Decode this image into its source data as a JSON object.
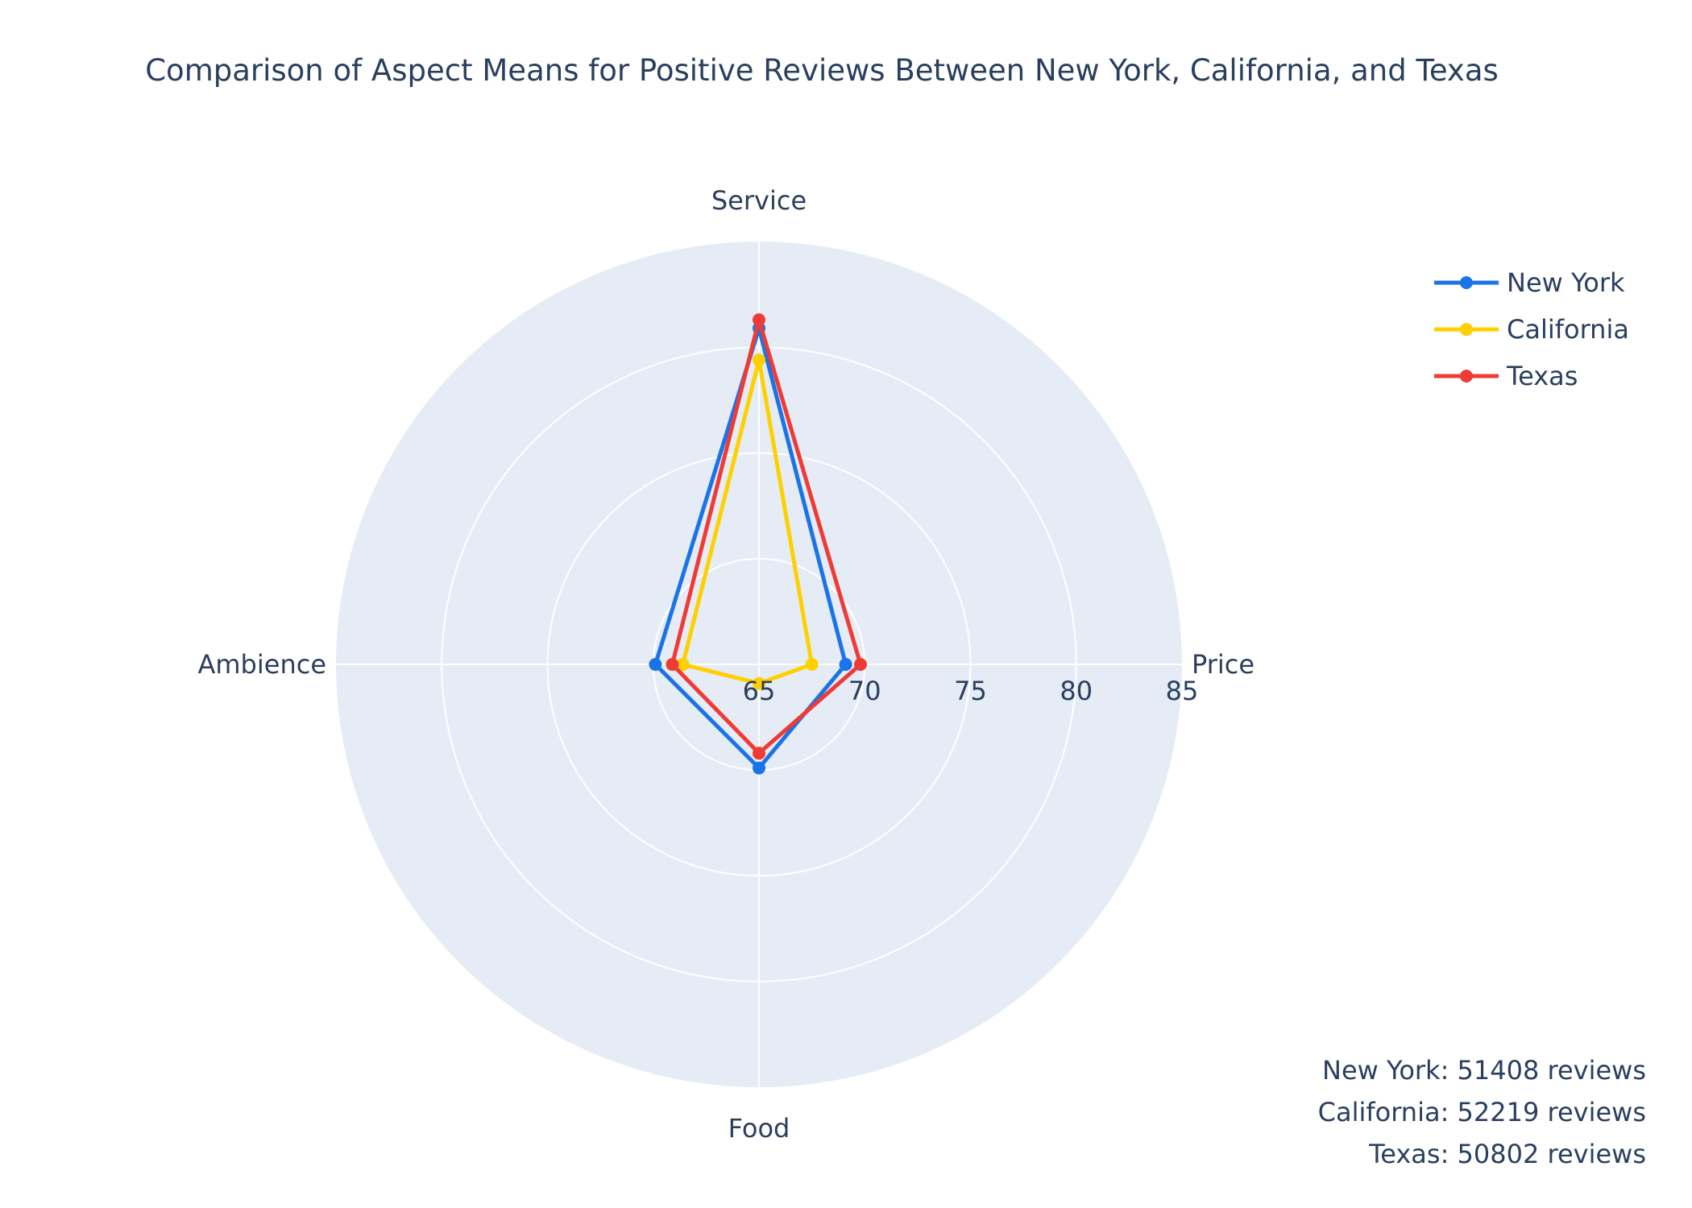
{
  "chart_data": {
    "type": "radar",
    "title": "Comparison of Aspect Means for Positive Reviews Between New York, California, and Texas",
    "categories": [
      "Service",
      "Price",
      "Food",
      "Ambience"
    ],
    "radial_range": [
      65,
      85
    ],
    "radial_ticks": [
      "65",
      "70",
      "75",
      "80",
      "85"
    ],
    "grid": true,
    "legend_position": "top-right",
    "series": [
      {
        "name": "New York",
        "color": "#1a73e8",
        "values": [
          80.9,
          69.1,
          69.9,
          69.9
        ]
      },
      {
        "name": "California",
        "color": "#ffd000",
        "values": [
          79.4,
          67.5,
          65.9,
          68.6
        ]
      },
      {
        "name": "Texas",
        "color": "#ef3b36",
        "values": [
          81.3,
          69.8,
          69.2,
          69.1
        ]
      }
    ],
    "annotations": [
      "New York: 51408 reviews",
      "California: 52219 reviews",
      "Texas: 50802 reviews"
    ]
  }
}
